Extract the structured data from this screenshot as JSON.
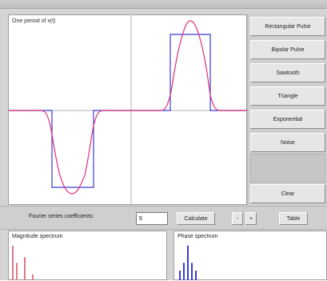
{
  "plot": {
    "title": "One period of x(t)",
    "colors": {
      "square_wave": "#3b3bd6",
      "fourier_approx": "#e0307a",
      "axes": "#9c9c9c"
    }
  },
  "buttons": {
    "rectangular_pulse": "Rectangular Pulse",
    "bipolar_pulse": "Bipolar Pulse",
    "sawtooth": "Sawtooth",
    "triangle": "Triangle",
    "exponential": "Exponential",
    "noise": "Noise",
    "clear": "Clear",
    "calculate": "Calculate",
    "minus": "-",
    "plus": "+",
    "table": "Table"
  },
  "controls": {
    "coefficients_label": "Fourier series coefficients:",
    "coefficients_value": "5"
  },
  "spectra": {
    "magnitude_title": "Magnitude spectrum",
    "phase_title": "Phase spectrum",
    "magnitude_color": "#e07a8a",
    "phase_color": "#3b3bd6",
    "magnitude_values": [
      0.9,
      0.45,
      0.0,
      0.6,
      0.0,
      0.15
    ],
    "phase_values": [
      0.25,
      0.45,
      0.9,
      0.45,
      0.25
    ]
  }
}
